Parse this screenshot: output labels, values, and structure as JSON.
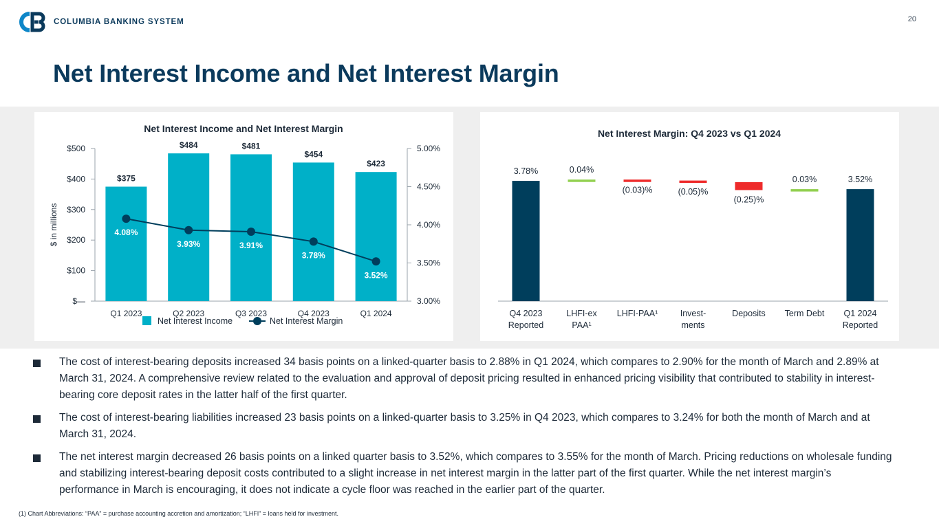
{
  "header": {
    "company": "COLUMBIA BANKING SYSTEM",
    "page_number": "20",
    "title": "Net Interest Income and Net Interest Margin"
  },
  "colors": {
    "navy": "#0b3a5c",
    "teal": "#00b0c8",
    "dark_blue": "#003e5c",
    "green": "#92d050",
    "red": "#ee2b2b"
  },
  "chart_data": [
    {
      "type": "bar",
      "title": "Net Interest Income and Net Interest Margin",
      "categories": [
        "Q1 2023",
        "Q2 2023",
        "Q3 2023",
        "Q4 2023",
        "Q1 2024"
      ],
      "series": [
        {
          "name": "Net Interest Income",
          "type": "bar",
          "axis": "left",
          "values": [
            375,
            484,
            481,
            454,
            423
          ],
          "labels": [
            "$375",
            "$484",
            "$481",
            "$454",
            "$423"
          ]
        },
        {
          "name": "Net Interest Margin",
          "type": "line",
          "axis": "right",
          "values": [
            4.08,
            3.93,
            3.91,
            3.78,
            3.52
          ],
          "labels": [
            "4.08%",
            "3.93%",
            "3.91%",
            "3.78%",
            "3.52%"
          ]
        }
      ],
      "ylabel": "$ in millions",
      "ylim": [
        0,
        500
      ],
      "y_ticks": [
        "$—",
        "$100",
        "$200",
        "$300",
        "$400",
        "$500"
      ],
      "y2lim": [
        3.0,
        5.0
      ],
      "y2_ticks": [
        "3.00%",
        "3.50%",
        "4.00%",
        "4.50%",
        "5.00%"
      ],
      "legend": [
        "Net Interest Income",
        "Net Interest Margin"
      ],
      "legend_position": "bottom"
    },
    {
      "type": "waterfall",
      "title": "Net Interest Margin: Q4 2023 vs Q1 2024",
      "categories": [
        "Q4 2023 Reported",
        "LHFI-ex PAA¹",
        "LHFI-PAA¹",
        "Invest-ments",
        "Deposits",
        "Term Debt",
        "Q1 2024 Reported"
      ],
      "category_lines": [
        [
          "Q4 2023",
          "Reported"
        ],
        [
          "LHFI-ex",
          "PAA¹"
        ],
        [
          "LHFI-PAA¹"
        ],
        [
          "Invest-",
          "ments"
        ],
        [
          "Deposits"
        ],
        [
          "Term Debt"
        ],
        [
          "Q1 2024",
          "Reported"
        ]
      ],
      "values": [
        3.78,
        0.04,
        -0.03,
        -0.05,
        -0.25,
        0.03,
        3.52
      ],
      "kinds": [
        "total",
        "delta",
        "delta",
        "delta",
        "delta",
        "delta",
        "total"
      ],
      "labels": [
        "3.78%",
        "0.04%",
        "(0.03)%",
        "(0.05)%",
        "(0.25)%",
        "0.03%",
        "3.52%"
      ]
    }
  ],
  "bullets": [
    "The cost of interest-bearing deposits increased 34 basis points on a linked-quarter basis to 2.88% in Q1 2024, which compares to 2.90% for the month of March and 2.89% at March 31, 2024. A comprehensive review related to the evaluation and approval of deposit pricing resulted in enhanced pricing visibility that contributed to stability in interest-bearing core deposit rates in the latter half of the first quarter.",
    "The cost of interest-bearing liabilities increased 23 basis points on a linked-quarter basis to 3.25% in Q4 2023, which compares to 3.24% for both the month of March and at March 31, 2024.",
    "The net interest margin decreased 26 basis points on a linked quarter basis to 3.52%, which compares to 3.55% for the month of March. Pricing reductions on wholesale funding and stabilizing interest-bearing deposit costs contributed to a slight increase in net interest margin in the latter part of the first quarter. While the net interest margin’s performance in March is encouraging, it does not indicate a cycle floor was reached in the earlier part of the quarter."
  ],
  "footnote": "(1)  Chart Abbreviations: “PAA” = purchase accounting accretion and amortization; “LHFI” = loans held for investment."
}
